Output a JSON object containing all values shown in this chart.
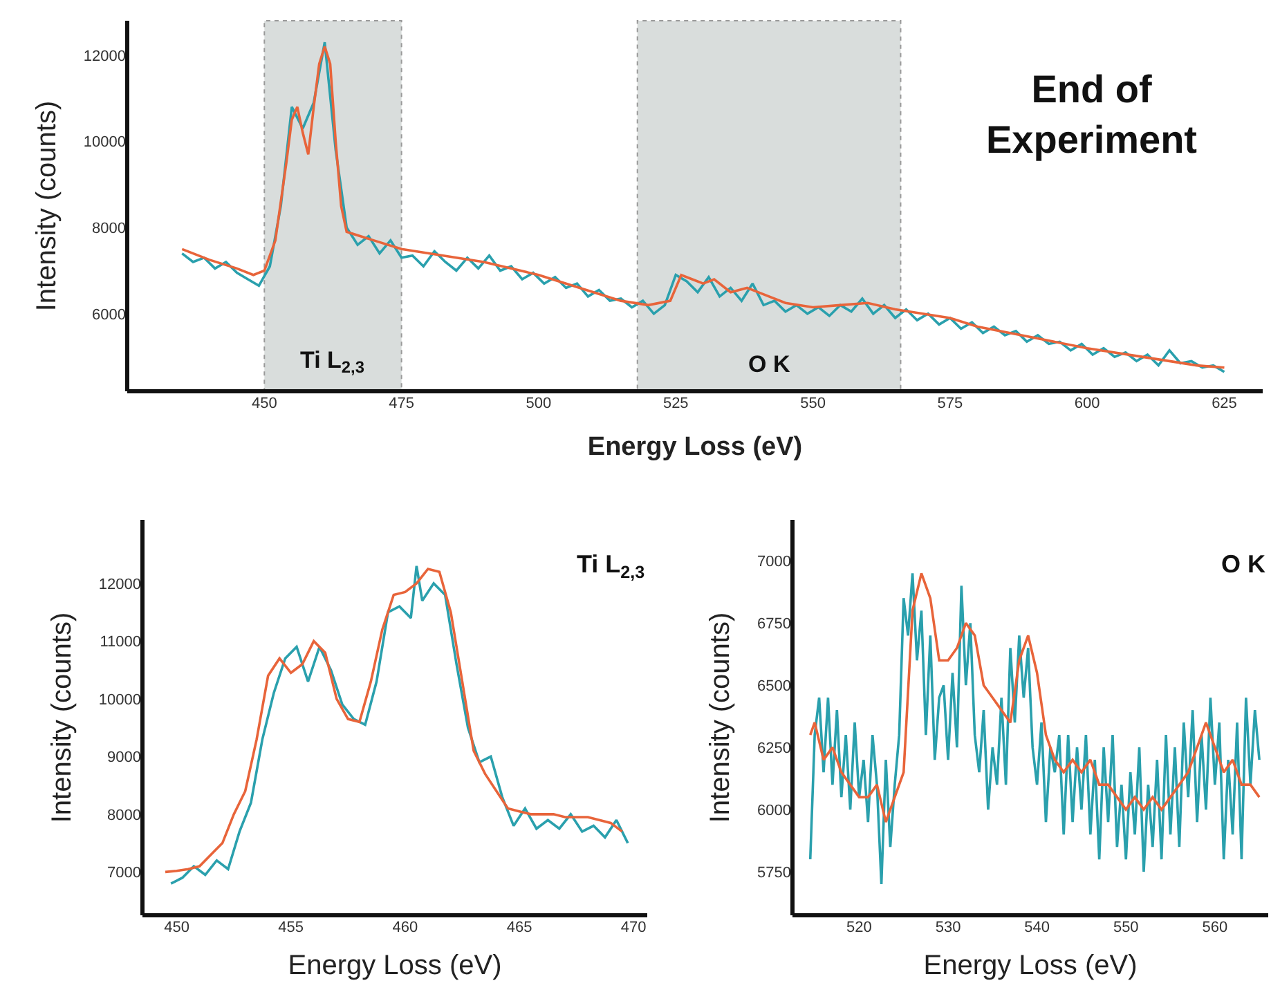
{
  "chart_data": [
    {
      "type": "line",
      "xlabel": "Energy Loss (eV)",
      "ylabel": "Intensity (counts)",
      "annotations": [
        "End of\nExperiment"
      ],
      "xlim": [
        425,
        632
      ],
      "ylim": [
        4200,
        12800
      ],
      "xticks": [
        450,
        475,
        500,
        525,
        550,
        575,
        600,
        625
      ],
      "yticks": [
        6000,
        8000,
        10000,
        12000
      ],
      "grid": false,
      "line_style": "solid",
      "bands": [
        {
          "axis": "x",
          "from": 450,
          "to": 475,
          "label": "Ti L$_{2,3}$",
          "color": "#d9dddc"
        },
        {
          "axis": "x",
          "from": 518,
          "to": 566,
          "label": "O K",
          "color": "#d9dddc"
        }
      ],
      "series": [
        {
          "color": "#2aa0ad",
          "x": [
            435,
            437,
            439,
            441,
            443,
            445,
            447,
            449,
            451,
            453,
            455,
            457,
            459,
            461,
            463,
            465,
            467,
            469,
            471,
            473,
            475,
            477,
            479,
            481,
            483,
            485,
            487,
            489,
            491,
            493,
            495,
            497,
            499,
            501,
            503,
            505,
            507,
            509,
            511,
            513,
            515,
            517,
            519,
            521,
            523,
            525,
            527,
            529,
            531,
            533,
            535,
            537,
            539,
            541,
            543,
            545,
            547,
            549,
            551,
            553,
            555,
            557,
            559,
            561,
            563,
            565,
            567,
            569,
            571,
            573,
            575,
            577,
            579,
            581,
            583,
            585,
            587,
            589,
            591,
            593,
            595,
            597,
            599,
            601,
            603,
            605,
            607,
            609,
            611,
            613,
            615,
            617,
            619,
            621,
            623,
            625
          ],
          "values": [
            7400,
            7200,
            7300,
            7050,
            7200,
            6950,
            6800,
            6650,
            7100,
            8500,
            10800,
            10300,
            10900,
            12300,
            9800,
            8000,
            7600,
            7800,
            7400,
            7700,
            7300,
            7350,
            7100,
            7450,
            7200,
            7000,
            7300,
            7050,
            7350,
            7000,
            7100,
            6800,
            6950,
            6700,
            6850,
            6600,
            6700,
            6400,
            6550,
            6300,
            6350,
            6150,
            6300,
            6000,
            6200,
            6900,
            6750,
            6500,
            6850,
            6400,
            6600,
            6300,
            6700,
            6200,
            6300,
            6050,
            6200,
            6000,
            6150,
            5950,
            6200,
            6050,
            6350,
            6000,
            6200,
            5900,
            6100,
            5850,
            6000,
            5750,
            5900,
            5650,
            5800,
            5550,
            5700,
            5500,
            5600,
            5350,
            5500,
            5300,
            5350,
            5150,
            5300,
            5050,
            5200,
            5000,
            5100,
            4900,
            5050,
            4800,
            5150,
            4850,
            4900,
            4750,
            4800,
            4650
          ]
        },
        {
          "color": "#e8643a",
          "x": [
            435,
            440,
            445,
            448,
            450,
            452,
            454,
            455,
            456,
            457,
            458,
            459,
            460,
            461,
            462,
            463,
            464,
            465,
            470,
            475,
            480,
            490,
            500,
            510,
            515,
            520,
            524,
            526,
            528,
            530,
            532,
            535,
            538,
            540,
            545,
            550,
            555,
            560,
            565,
            570,
            575,
            580,
            590,
            600,
            610,
            620,
            625
          ],
          "values": [
            7500,
            7250,
            7050,
            6900,
            7000,
            7700,
            9500,
            10500,
            10800,
            10200,
            9700,
            10800,
            11800,
            12200,
            11800,
            10000,
            8500,
            7900,
            7700,
            7500,
            7400,
            7200,
            6900,
            6500,
            6300,
            6200,
            6300,
            6900,
            6800,
            6700,
            6800,
            6500,
            6600,
            6500,
            6250,
            6150,
            6200,
            6250,
            6100,
            6000,
            5900,
            5700,
            5450,
            5200,
            5000,
            4800,
            4750
          ]
        }
      ]
    },
    {
      "type": "line",
      "xlabel": "Energy Loss (eV)",
      "ylabel": "Intensity (counts)",
      "annotations": [
        "Ti L$_{2,3}$"
      ],
      "xlim": [
        448.5,
        470.6
      ],
      "ylim": [
        6250,
        13100
      ],
      "xticks": [
        450,
        455,
        460,
        465,
        470
      ],
      "yticks": [
        7000,
        8000,
        9000,
        10000,
        11000,
        12000
      ],
      "grid": false,
      "line_style": "solid",
      "series": [
        {
          "color": "#2aa0ad",
          "x": [
            449.75,
            450.25,
            450.75,
            451.25,
            451.75,
            452.25,
            452.75,
            453.25,
            453.75,
            454.25,
            454.75,
            455.25,
            455.75,
            456.25,
            456.75,
            457.25,
            457.75,
            458.25,
            458.75,
            459.25,
            459.75,
            460.25,
            460.5,
            460.75,
            461.25,
            461.75,
            462.25,
            462.75,
            463.25,
            463.75,
            464.25,
            464.75,
            465.25,
            465.75,
            466.25,
            466.75,
            467.25,
            467.75,
            468.25,
            468.75,
            469.25,
            469.75
          ],
          "values": [
            6800,
            6900,
            7100,
            6950,
            7200,
            7050,
            7700,
            8200,
            9300,
            10100,
            10700,
            10900,
            10300,
            10900,
            10500,
            9900,
            9650,
            9550,
            10300,
            11500,
            11600,
            11400,
            12300,
            11700,
            12000,
            11800,
            10600,
            9500,
            8900,
            9000,
            8300,
            7800,
            8100,
            7750,
            7900,
            7750,
            8000,
            7700,
            7800,
            7600,
            7900,
            7500
          ]
        },
        {
          "color": "#e8643a",
          "x": [
            449.5,
            450,
            450.5,
            451,
            451.5,
            452,
            452.5,
            453,
            453.5,
            454,
            454.5,
            455,
            455.5,
            456,
            456.5,
            457,
            457.5,
            458,
            458.5,
            459,
            459.5,
            460,
            460.5,
            461,
            461.5,
            462,
            462.5,
            463,
            463.5,
            464,
            464.5,
            465,
            465.5,
            466,
            466.5,
            467,
            467.5,
            468,
            468.5,
            469,
            469.5
          ],
          "values": [
            7000,
            7020,
            7050,
            7100,
            7300,
            7500,
            8000,
            8400,
            9300,
            10400,
            10700,
            10450,
            10600,
            11000,
            10800,
            10000,
            9650,
            9600,
            10300,
            11200,
            11800,
            11850,
            12000,
            12250,
            12200,
            11500,
            10300,
            9100,
            8700,
            8400,
            8100,
            8050,
            8000,
            8000,
            8000,
            7950,
            7950,
            7950,
            7900,
            7850,
            7700
          ]
        }
      ]
    },
    {
      "type": "line",
      "xlabel": "Energy Loss (eV)",
      "ylabel": "Intensity (counts)",
      "annotations": [
        "O K"
      ],
      "xlim": [
        512.5,
        566
      ],
      "ylim": [
        5575,
        7165
      ],
      "xticks": [
        520,
        530,
        540,
        550,
        560
      ],
      "yticks": [
        5750,
        6000,
        6250,
        6500,
        6750,
        7000
      ],
      "grid": false,
      "line_style": "solid",
      "series": [
        {
          "color": "#2aa0ad",
          "x": [
            514.5,
            515,
            515.5,
            516,
            516.5,
            517,
            517.5,
            518,
            518.5,
            519,
            519.5,
            520,
            520.5,
            521,
            521.5,
            522,
            522.5,
            523,
            523.5,
            524,
            524.5,
            525,
            525.5,
            526,
            526.5,
            527,
            527.5,
            528,
            528.5,
            529,
            529.5,
            530,
            530.5,
            531,
            531.5,
            532,
            532.5,
            533,
            533.5,
            534,
            534.5,
            535,
            535.5,
            536,
            536.5,
            537,
            537.5,
            538,
            538.5,
            539,
            539.5,
            540,
            540.5,
            541,
            541.5,
            542,
            542.5,
            543,
            543.5,
            544,
            544.5,
            545,
            545.5,
            546,
            546.5,
            547,
            547.5,
            548,
            548.5,
            549,
            549.5,
            550,
            550.5,
            551,
            551.5,
            552,
            552.5,
            553,
            553.5,
            554,
            554.5,
            555,
            555.5,
            556,
            556.5,
            557,
            557.5,
            558,
            558.5,
            559,
            559.5,
            560,
            560.5,
            561,
            561.5,
            562,
            562.5,
            563,
            563.5,
            564,
            564.5,
            565
          ],
          "values": [
            5800,
            6300,
            6450,
            6150,
            6450,
            6100,
            6400,
            6050,
            6300,
            6000,
            6350,
            6050,
            6200,
            5950,
            6300,
            6100,
            5700,
            6200,
            5850,
            6100,
            6300,
            6850,
            6700,
            6950,
            6600,
            6800,
            6300,
            6700,
            6200,
            6450,
            6500,
            6200,
            6550,
            6250,
            6900,
            6500,
            6750,
            6300,
            6150,
            6400,
            6000,
            6250,
            6100,
            6450,
            6100,
            6650,
            6350,
            6700,
            6450,
            6650,
            6250,
            6100,
            6350,
            5950,
            6250,
            6150,
            6300,
            5900,
            6300,
            5950,
            6250,
            6000,
            6300,
            5900,
            6200,
            5800,
            6250,
            5950,
            6300,
            5850,
            6100,
            5800,
            6150,
            5900,
            6250,
            5750,
            6100,
            5850,
            6200,
            5800,
            6300,
            5900,
            6250,
            5850,
            6350,
            6050,
            6400,
            5950,
            6300,
            6000,
            6450,
            6100,
            6350,
            5800,
            6200,
            5900,
            6350,
            5800,
            6450,
            6100,
            6400,
            6200
          ]
        },
        {
          "color": "#e8643a",
          "x": [
            514.5,
            515,
            516,
            517,
            518,
            519,
            520,
            521,
            522,
            523,
            524,
            525,
            526,
            527,
            528,
            529,
            530,
            531,
            532,
            533,
            534,
            535,
            536,
            537,
            538,
            539,
            540,
            541,
            542,
            543,
            544,
            545,
            546,
            547,
            548,
            549,
            550,
            551,
            552,
            553,
            554,
            555,
            556,
            557,
            558,
            559,
            560,
            561,
            562,
            563,
            564,
            565
          ],
          "values": [
            6300,
            6350,
            6200,
            6250,
            6150,
            6100,
            6050,
            6050,
            6100,
            5950,
            6050,
            6150,
            6800,
            6950,
            6850,
            6600,
            6600,
            6650,
            6750,
            6700,
            6500,
            6450,
            6400,
            6350,
            6600,
            6700,
            6550,
            6300,
            6200,
            6150,
            6200,
            6150,
            6200,
            6100,
            6100,
            6050,
            6000,
            6050,
            6000,
            6050,
            6000,
            6050,
            6100,
            6150,
            6250,
            6350,
            6250,
            6150,
            6200,
            6100,
            6100,
            6050
          ]
        }
      ]
    }
  ]
}
